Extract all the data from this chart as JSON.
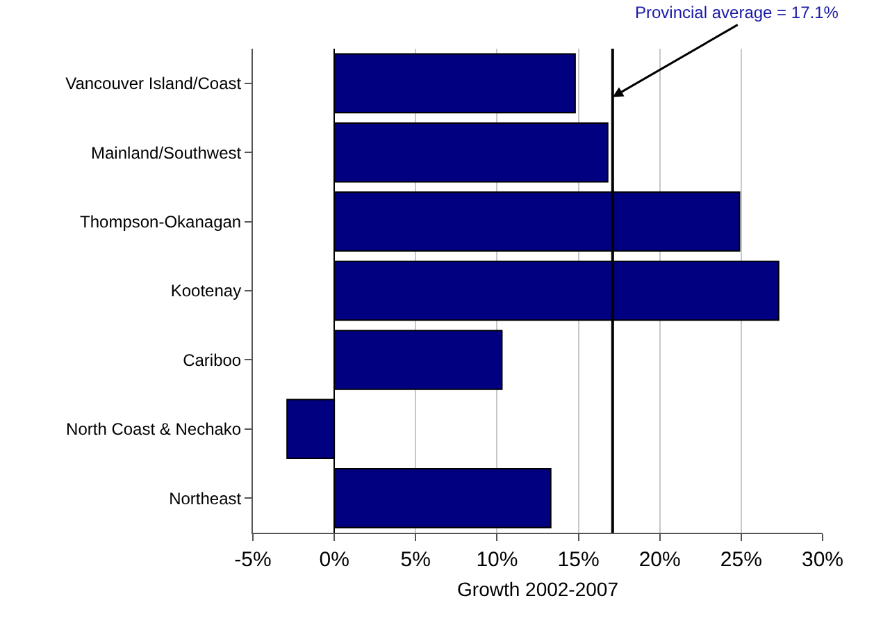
{
  "chart_data": {
    "type": "bar",
    "orientation": "horizontal",
    "xlabel": "Growth 2002-2007",
    "categories": [
      "Vancouver Island/Coast",
      "Mainland/Southwest",
      "Thompson-Okanagan",
      "Kootenay",
      "Cariboo",
      "North Coast & Nechako",
      "Northeast"
    ],
    "values": [
      14.8,
      16.8,
      24.9,
      27.3,
      10.3,
      -2.9,
      13.3
    ],
    "color": "#000080",
    "xlim": [
      -5,
      30
    ],
    "xticks": [
      {
        "value": -5,
        "label": "-5%"
      },
      {
        "value": 0,
        "label": "0%"
      },
      {
        "value": 5,
        "label": "5%"
      },
      {
        "value": 10,
        "label": "10%"
      },
      {
        "value": 15,
        "label": "15%"
      },
      {
        "value": 20,
        "label": "20%"
      },
      {
        "value": 25,
        "label": "25%"
      },
      {
        "value": 30,
        "label": "30%"
      }
    ],
    "grid": "x",
    "ref_lines": [
      {
        "axis": "x",
        "value": 17.1,
        "label": "Provincial average = 17.1%",
        "color": "#000000"
      }
    ]
  }
}
